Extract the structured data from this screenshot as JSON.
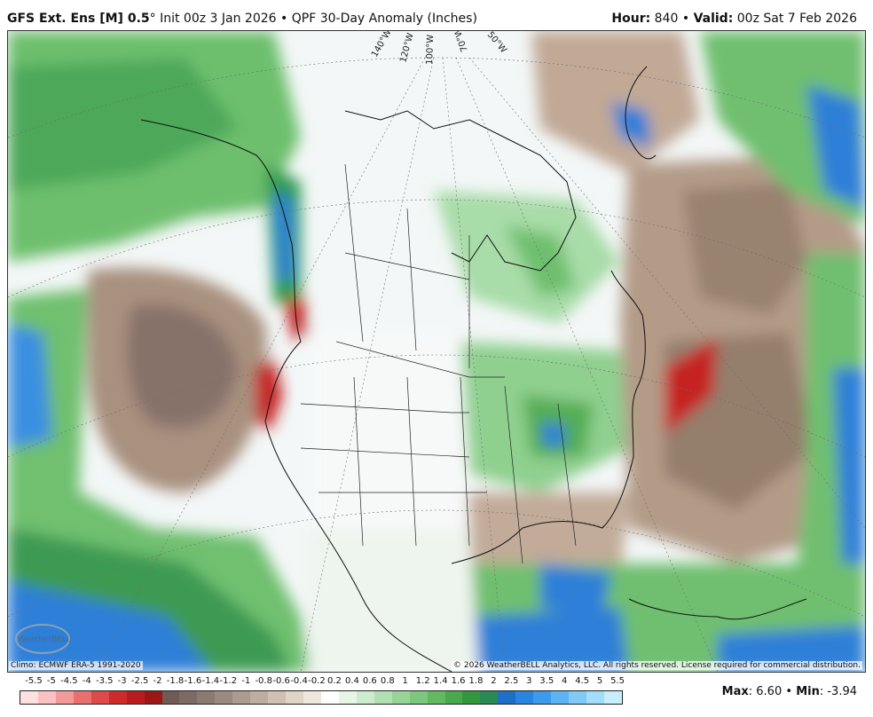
{
  "header": {
    "model": "GFS Ext. Ens [M] 0.5",
    "degree": "°",
    "init": "Init 00z 3 Jan 2026",
    "sep": "•",
    "product": "QPF 30-Day Anomaly (Inches)",
    "hour_label": "Hour:",
    "hour_value": "840",
    "valid_label": "Valid:",
    "valid_value": "00z Sat 7 Feb 2026"
  },
  "map": {
    "longitude_labels": [
      "140°W",
      "120°W",
      "100°W",
      "70°W",
      "50°W"
    ],
    "climo_note": "Climo: ECMWF ERA-5 1991-2020",
    "copyright": "© 2026 WeatherBELL Analytics, LLC. All rights reserved. License required for commercial distribution.",
    "logo_text": "WeatherBELL"
  },
  "legend": {
    "labels": [
      "-5.5",
      "-5",
      "-4.5",
      "-4",
      "-3.5",
      "-3",
      "-2.5",
      "-2",
      "-1.8",
      "-1.6",
      "-1.4",
      "-1.2",
      "-1",
      "-0.8",
      "-0.6",
      "-0.4",
      "-0.2",
      "0.2",
      "0.4",
      "0.6",
      "0.8",
      "1",
      "1.2",
      "1.4",
      "1.6",
      "1.8",
      "2",
      "2.5",
      "3",
      "3.5",
      "4",
      "4.5",
      "5",
      "5.5"
    ],
    "colors": [
      "#fde0e0",
      "#f9c2c2",
      "#f29a9a",
      "#e97070",
      "#dd4a4a",
      "#cf2a2a",
      "#b81c1c",
      "#9c1616",
      "#6f5a55",
      "#7d6a64",
      "#8c7a72",
      "#9c8a80",
      "#ad9b90",
      "#bfae9f",
      "#d0c0b1",
      "#e0d4c7",
      "#eee7de",
      "#ffffff",
      "#e6f5e6",
      "#cdebcd",
      "#b3e0b3",
      "#98d498",
      "#7dc77d",
      "#62b962",
      "#49a94d",
      "#33983d",
      "#2a8a55",
      "#1f6fc9",
      "#2a85e0",
      "#3d9bee",
      "#5cb4f3",
      "#7fcaf7",
      "#a3ddfa",
      "#c6eefc"
    ],
    "max_label": "Max",
    "max_value": "6.60",
    "min_label": "Min",
    "min_value": "-3.94"
  }
}
